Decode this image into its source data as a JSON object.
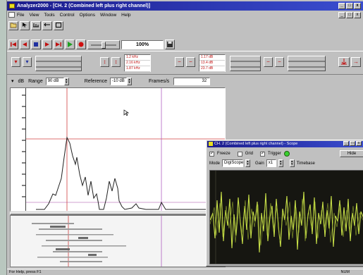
{
  "window": {
    "title": "Analyzer2000 - [CH. 2 (Combined left plus right channel)]",
    "minimize_icon": "_",
    "restore_icon": "□",
    "close_icon": "x"
  },
  "menu": [
    "File",
    "View",
    "Tools",
    "Control",
    "Options",
    "Window",
    "Help"
  ],
  "toolbar": {
    "zoom_value": "100%"
  },
  "readouts": {
    "group1": [
      "1.2 kHz",
      "2.16 kHz",
      "1.87 kHz"
    ],
    "group2": [
      "1.17 dB",
      "13.4 dB",
      "23.7 dB"
    ]
  },
  "settings": {
    "unit": "dB",
    "range_label": "Range",
    "range_value": "90 dB",
    "reference_label": "Reference",
    "reference_value": "-10 dB",
    "frames_label": "Frames/s",
    "frames_value": "32"
  },
  "scope": {
    "title": "CH. 2 (Combined left plus right channel) - Scope",
    "freeze_label": "Freeze",
    "grid_label": "Grid",
    "trigger_label": "Trigger",
    "hide_label": "Hide",
    "mode_label": "Mode",
    "mode_value": "DigiScope",
    "gain_label": "Gain",
    "gain_value": "x1",
    "timebase_label": "Timebase",
    "freeze_checked": true,
    "grid_checked": false,
    "trigger_checked": true
  },
  "status": {
    "left": "For Help, press F1",
    "right": "NUM"
  },
  "colors": {
    "title_bar": "#1c1c8c",
    "spectrum_line": "#000000",
    "cursor_line": "#d04040",
    "scope_trace": "#c8e048",
    "scope_bg": "#161611"
  }
}
